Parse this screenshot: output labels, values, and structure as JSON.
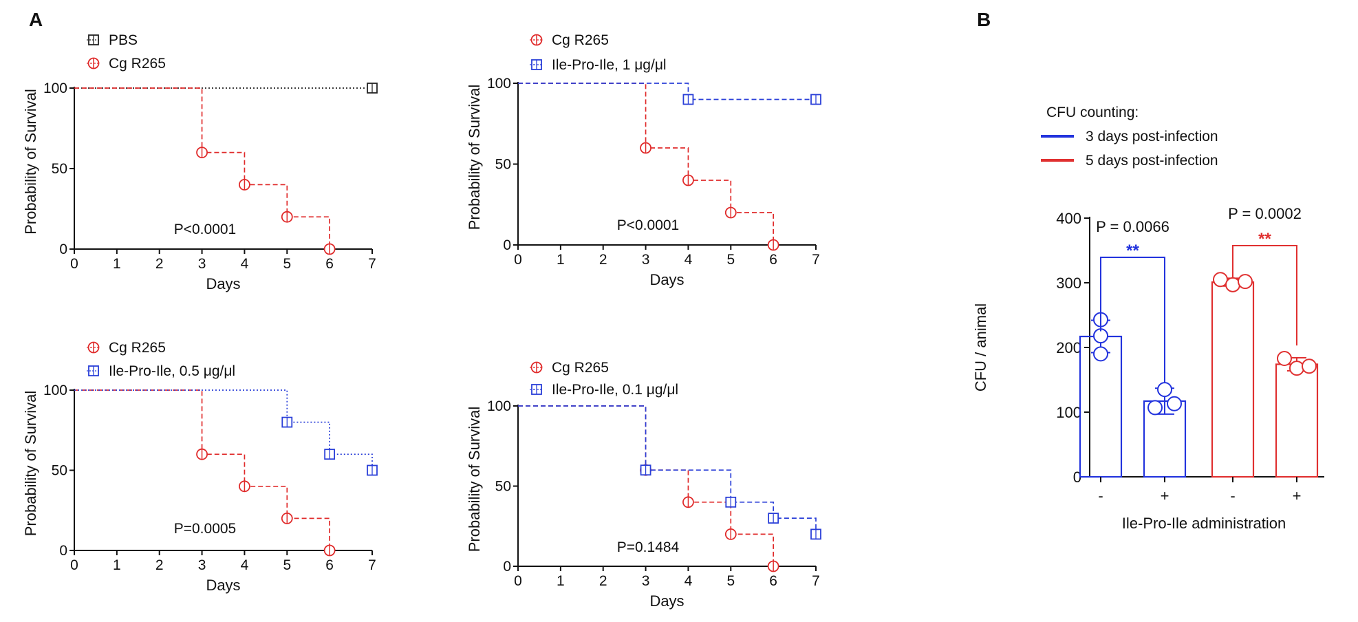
{
  "panel_labels": {
    "a": "A",
    "b": "B"
  },
  "colors": {
    "red": "#e02b2b",
    "blue": "#2a3fd8",
    "black": "#222222",
    "bar_red": "#e03030",
    "bar_blue": "#2233dd"
  },
  "chart_data": [
    {
      "type": "line",
      "subtype": "kaplan-meier",
      "xlabel": "Days",
      "ylabel": "Probability of Survival",
      "xticks": [
        "0",
        "1",
        "2",
        "3",
        "4",
        "5",
        "6",
        "7"
      ],
      "yticks": [
        "0",
        "50",
        "100"
      ],
      "xlim": [
        0,
        7
      ],
      "ylim": [
        0,
        100
      ],
      "annotation": "P<0.0001",
      "series": [
        {
          "name": "PBS",
          "color": "black",
          "marker": "square",
          "dash": "dotted",
          "steps": [
            [
              0,
              100
            ],
            [
              7,
              100
            ]
          ],
          "markers": [
            [
              7,
              100
            ]
          ]
        },
        {
          "name": "Cg R265",
          "color": "red",
          "marker": "circle",
          "dash": "dashed",
          "steps": [
            [
              0,
              100
            ],
            [
              3,
              60
            ],
            [
              4,
              40
            ],
            [
              5,
              20
            ],
            [
              6,
              0
            ]
          ],
          "markers": [
            [
              3,
              60
            ],
            [
              4,
              40
            ],
            [
              5,
              20
            ],
            [
              6,
              0
            ]
          ]
        }
      ]
    },
    {
      "type": "line",
      "subtype": "kaplan-meier",
      "xlabel": "Days",
      "ylabel": "Probability of Survival",
      "xticks": [
        "0",
        "1",
        "2",
        "3",
        "4",
        "5",
        "6",
        "7"
      ],
      "yticks": [
        "0",
        "50",
        "100"
      ],
      "xlim": [
        0,
        7
      ],
      "ylim": [
        0,
        100
      ],
      "annotation": "P<0.0001",
      "series": [
        {
          "name": "Cg R265",
          "color": "red",
          "marker": "circle",
          "dash": "dashed",
          "steps": [
            [
              0,
              100
            ],
            [
              3,
              60
            ],
            [
              4,
              40
            ],
            [
              5,
              20
            ],
            [
              6,
              0
            ]
          ],
          "markers": [
            [
              3,
              60
            ],
            [
              4,
              40
            ],
            [
              5,
              20
            ],
            [
              6,
              0
            ]
          ]
        },
        {
          "name": "Ile-Pro-Ile, 1 μg/μl",
          "color": "blue",
          "marker": "square",
          "dash": "dashed",
          "steps": [
            [
              0,
              100
            ],
            [
              4,
              90
            ],
            [
              7,
              90
            ]
          ],
          "markers": [
            [
              4,
              90
            ],
            [
              7,
              90
            ]
          ]
        }
      ]
    },
    {
      "type": "line",
      "subtype": "kaplan-meier",
      "xlabel": "Days",
      "ylabel": "Probability of Survival",
      "xticks": [
        "0",
        "1",
        "2",
        "3",
        "4",
        "5",
        "6",
        "7"
      ],
      "yticks": [
        "0",
        "50",
        "100"
      ],
      "xlim": [
        0,
        7
      ],
      "ylim": [
        0,
        100
      ],
      "annotation": "P=0.0005",
      "series": [
        {
          "name": "Cg R265",
          "color": "red",
          "marker": "circle",
          "dash": "dashed",
          "steps": [
            [
              0,
              100
            ],
            [
              3,
              60
            ],
            [
              4,
              40
            ],
            [
              5,
              20
            ],
            [
              6,
              0
            ]
          ],
          "markers": [
            [
              3,
              60
            ],
            [
              4,
              40
            ],
            [
              5,
              20
            ],
            [
              6,
              0
            ]
          ]
        },
        {
          "name": "Ile-Pro-Ile, 0.5 μg/μl",
          "color": "blue",
          "marker": "square",
          "dash": "dotted",
          "steps": [
            [
              0,
              100
            ],
            [
              5,
              80
            ],
            [
              6,
              60
            ],
            [
              7,
              50
            ]
          ],
          "markers": [
            [
              5,
              80
            ],
            [
              6,
              60
            ],
            [
              7,
              50
            ]
          ]
        }
      ]
    },
    {
      "type": "line",
      "subtype": "kaplan-meier",
      "xlabel": "Days",
      "ylabel": "Probability of Survival",
      "xticks": [
        "0",
        "1",
        "2",
        "3",
        "4",
        "5",
        "6",
        "7"
      ],
      "yticks": [
        "0",
        "50",
        "100"
      ],
      "xlim": [
        0,
        7
      ],
      "ylim": [
        0,
        100
      ],
      "annotation": "P=0.1484",
      "series": [
        {
          "name": "Cg R265",
          "color": "red",
          "marker": "circle",
          "dash": "dashed",
          "steps": [
            [
              0,
              100
            ],
            [
              3,
              60
            ],
            [
              4,
              40
            ],
            [
              5,
              20
            ],
            [
              6,
              0
            ]
          ],
          "markers": [
            [
              3,
              60
            ],
            [
              4,
              40
            ],
            [
              5,
              20
            ],
            [
              6,
              0
            ]
          ]
        },
        {
          "name": "Ile-Pro-Ile, 0.1 μg/μl",
          "color": "blue",
          "marker": "square",
          "dash": "dashed",
          "steps": [
            [
              0,
              100
            ],
            [
              3,
              60
            ],
            [
              5,
              40
            ],
            [
              6,
              30
            ],
            [
              7,
              20
            ]
          ],
          "markers": [
            [
              3,
              60
            ],
            [
              5,
              40
            ],
            [
              6,
              30
            ],
            [
              7,
              20
            ]
          ]
        }
      ]
    },
    {
      "type": "bar",
      "legend_title": "CFU counting:",
      "legend": [
        {
          "name": "3 days post-infection",
          "color": "blue"
        },
        {
          "name": "5 days post-infection",
          "color": "red"
        }
      ],
      "ylabel": "CFU / animal",
      "xlabel": "Ile-Pro-Ile administration",
      "yticks": [
        "0",
        "100",
        "200",
        "300",
        "400"
      ],
      "ylim": [
        0,
        400
      ],
      "categories": [
        "-",
        "+",
        "-",
        "+"
      ],
      "bars": [
        {
          "value": 217,
          "sd": 25,
          "color": "blue",
          "points": [
            243,
            218,
            190
          ]
        },
        {
          "value": 117,
          "sd": 20,
          "color": "blue",
          "points": [
            135,
            107,
            113
          ]
        },
        {
          "value": 301,
          "sd": 6,
          "color": "red",
          "points": [
            305,
            297,
            302
          ]
        },
        {
          "value": 174,
          "sd": 10,
          "color": "red",
          "points": [
            183,
            168,
            171
          ]
        }
      ],
      "comparisons": [
        {
          "label": "P = 0.0066",
          "stars": "**",
          "color": "blue",
          "bars": [
            0,
            1
          ]
        },
        {
          "label": "P = 0.0002",
          "stars": "**",
          "color": "red",
          "bars": [
            2,
            3
          ]
        }
      ]
    }
  ]
}
